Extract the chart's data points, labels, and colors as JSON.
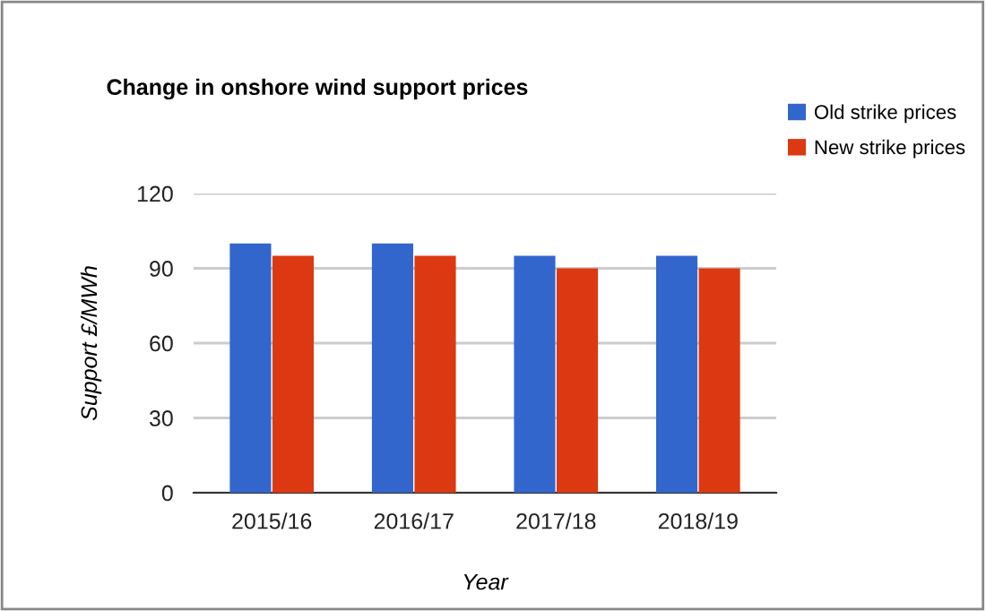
{
  "chart_data": {
    "type": "bar",
    "title": "Change in onshore wind support prices",
    "xlabel": "Year",
    "ylabel": "Support £/MWh",
    "categories": [
      "2015/16",
      "2016/17",
      "2017/18",
      "2018/19"
    ],
    "series": [
      {
        "name": "Old strike prices",
        "color": "#3366cc",
        "values": [
          100,
          100,
          95,
          95
        ]
      },
      {
        "name": "New strike prices",
        "color": "#dc3912",
        "values": [
          95,
          95,
          90,
          90
        ]
      }
    ],
    "ylim": [
      0,
      120
    ],
    "yticks": [
      0,
      30,
      60,
      90,
      120
    ],
    "grid": "y",
    "legend": "right"
  }
}
